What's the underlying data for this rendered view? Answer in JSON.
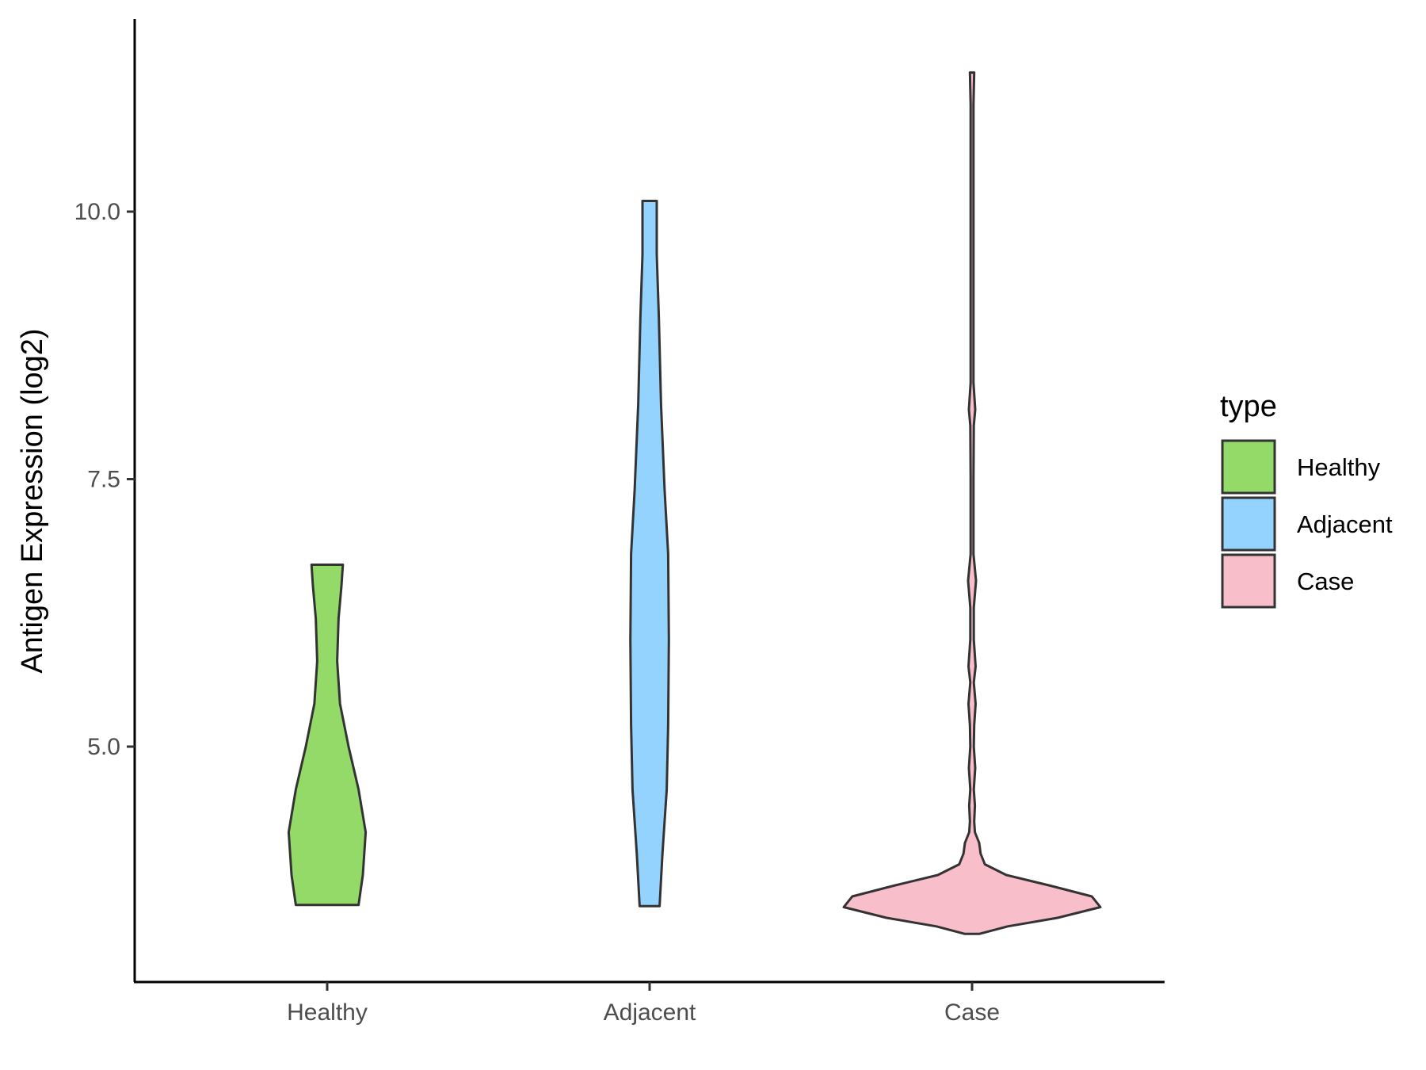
{
  "chart_data": {
    "type": "violin",
    "title": "",
    "xlabel": "",
    "ylabel": "Antigen Expression (log2)",
    "ylim": [
      2.8,
      11.8
    ],
    "yticks": [
      5.0,
      7.5,
      10.0
    ],
    "ytick_labels": [
      "5.0",
      "7.5",
      "10.0"
    ],
    "categories": [
      "Healthy",
      "Adjacent",
      "Case"
    ],
    "grid": false,
    "legend": {
      "title": "type",
      "position": "right",
      "entries": [
        "Healthy",
        "Adjacent",
        "Case"
      ]
    },
    "series": [
      {
        "name": "Healthy",
        "color": "#93DA69",
        "min": 3.52,
        "max": 6.7,
        "density": [
          [
            3.52,
            0.22
          ],
          [
            3.8,
            0.25
          ],
          [
            4.2,
            0.27
          ],
          [
            4.6,
            0.22
          ],
          [
            5.0,
            0.15
          ],
          [
            5.4,
            0.09
          ],
          [
            5.8,
            0.07
          ],
          [
            6.2,
            0.08
          ],
          [
            6.5,
            0.1
          ],
          [
            6.7,
            0.11
          ]
        ]
      },
      {
        "name": "Adjacent",
        "color": "#95D3FF",
        "min": 3.51,
        "max": 10.1,
        "density": [
          [
            3.51,
            0.07
          ],
          [
            4.0,
            0.09
          ],
          [
            4.6,
            0.12
          ],
          [
            5.2,
            0.13
          ],
          [
            6.0,
            0.135
          ],
          [
            6.8,
            0.13
          ],
          [
            7.4,
            0.105
          ],
          [
            8.2,
            0.08
          ],
          [
            9.0,
            0.065
          ],
          [
            9.6,
            0.05
          ],
          [
            10.1,
            0.05
          ]
        ]
      },
      {
        "name": "Case",
        "color": "#F8BFCA",
        "min": 3.25,
        "max": 11.3,
        "density": [
          [
            3.25,
            0.05
          ],
          [
            3.32,
            0.25
          ],
          [
            3.4,
            0.6
          ],
          [
            3.5,
            0.9
          ],
          [
            3.6,
            0.84
          ],
          [
            3.7,
            0.55
          ],
          [
            3.8,
            0.24
          ],
          [
            3.9,
            0.09
          ],
          [
            4.0,
            0.06
          ],
          [
            4.1,
            0.05
          ],
          [
            4.2,
            0.02
          ],
          [
            4.3,
            0.015
          ],
          [
            4.45,
            0.02
          ],
          [
            4.6,
            0.012
          ],
          [
            4.8,
            0.022
          ],
          [
            5.0,
            0.012
          ],
          [
            5.2,
            0.015
          ],
          [
            5.4,
            0.025
          ],
          [
            5.6,
            0.012
          ],
          [
            5.75,
            0.025
          ],
          [
            6.0,
            0.012
          ],
          [
            6.3,
            0.012
          ],
          [
            6.55,
            0.028
          ],
          [
            6.8,
            0.01
          ],
          [
            7.5,
            0.01
          ],
          [
            8.0,
            0.012
          ],
          [
            8.15,
            0.022
          ],
          [
            8.4,
            0.01
          ],
          [
            9.5,
            0.01
          ],
          [
            11.0,
            0.01
          ],
          [
            11.3,
            0.015
          ]
        ]
      }
    ]
  }
}
